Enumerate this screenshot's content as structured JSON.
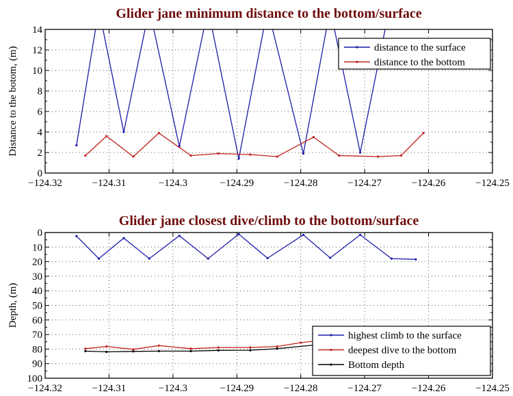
{
  "chart_data": [
    {
      "type": "line",
      "title": "Glider jane minimum distance to the bottom/surface",
      "xlabel": "",
      "ylabel": "Distance to the botom, (m)",
      "xlim": [
        -124.32,
        -124.25
      ],
      "ylim": [
        0,
        14
      ],
      "xticks": [
        -124.32,
        -124.31,
        -124.3,
        -124.29,
        -124.28,
        -124.27,
        -124.26,
        -124.25
      ],
      "xtick_labels": [
        "−124.32",
        "−124.31",
        "−124.3",
        "−124.29",
        "−124.28",
        "−124.27",
        "−124.26",
        "−124.25"
      ],
      "yticks": [
        0,
        2,
        4,
        6,
        8,
        10,
        12,
        14
      ],
      "ytick_labels": [
        "0",
        "2",
        "4",
        "6",
        "8",
        "10",
        "12",
        "14"
      ],
      "grid": true,
      "legend_position": "top-right",
      "series": [
        {
          "name": "distance to the surface",
          "color": "#1a1aa8",
          "x": [
            -124.3151,
            -124.3116,
            -124.3077,
            -124.3037,
            -124.299,
            -124.2945,
            -124.2897,
            -124.2852,
            -124.2796,
            -124.2754,
            -124.2707,
            -124.2655
          ],
          "y": [
            2.7,
            16,
            4.0,
            16,
            2.6,
            16,
            1.4,
            16,
            1.9,
            16,
            2.0,
            18
          ]
        },
        {
          "name": "distance to the bottom",
          "color": "#c0201a",
          "x": [
            -124.3137,
            -124.3104,
            -124.3062,
            -124.3022,
            -124.2972,
            -124.2929,
            -124.2879,
            -124.2837,
            -124.278,
            -124.274,
            -124.2679,
            -124.2643,
            -124.2608
          ],
          "y": [
            1.7,
            3.6,
            1.6,
            3.9,
            1.7,
            1.9,
            1.8,
            1.6,
            3.5,
            1.7,
            1.6,
            1.7,
            3.9
          ]
        }
      ]
    },
    {
      "type": "line",
      "title": "Glider jane closest dive/climb to the bottom/surface",
      "xlabel": "",
      "ylabel": "Depth, (m)",
      "xlim": [
        -124.32,
        -124.25
      ],
      "ylim": [
        100,
        0
      ],
      "xticks": [
        -124.32,
        -124.31,
        -124.3,
        -124.29,
        -124.28,
        -124.27,
        -124.26,
        -124.25
      ],
      "xtick_labels": [
        "−124.32",
        "−124.31",
        "−124.3",
        "−124.29",
        "−124.28",
        "−124.27",
        "−124.26",
        "−124.25"
      ],
      "yticks": [
        0,
        10,
        20,
        30,
        40,
        50,
        60,
        70,
        80,
        90,
        100
      ],
      "ytick_labels": [
        "0",
        "10",
        "20",
        "30",
        "40",
        "50",
        "60",
        "70",
        "80",
        "90",
        "100"
      ],
      "grid": true,
      "legend_position": "bottom-right",
      "series": [
        {
          "name": "highest climb to the surface",
          "color": "#1a1aa8",
          "x": [
            -124.3151,
            -124.3116,
            -124.3077,
            -124.3037,
            -124.299,
            -124.2945,
            -124.2897,
            -124.2852,
            -124.2796,
            -124.2754,
            -124.2707,
            -124.2658,
            -124.262
          ],
          "y": [
            2.4,
            17.9,
            3.8,
            17.9,
            2.2,
            17.9,
            1.1,
            17.6,
            1.6,
            17.4,
            1.6,
            17.9,
            18.4
          ]
        },
        {
          "name": "deepest dive to the bottom",
          "color": "#c0201a",
          "x": [
            -124.3137,
            -124.3104,
            -124.3062,
            -124.3022,
            -124.2972,
            -124.2929,
            -124.2879,
            -124.2837,
            -124.28,
            -124.278,
            -124.274
          ],
          "y": [
            79.7,
            78.2,
            80.2,
            77.6,
            79.7,
            78.9,
            78.9,
            78.2,
            75.6,
            74.6,
            73.5
          ]
        },
        {
          "name": "Bottom depth",
          "color": "#000000",
          "x": [
            -124.3137,
            -124.3104,
            -124.3062,
            -124.3022,
            -124.2972,
            -124.2929,
            -124.2879,
            -124.2837,
            -124.278,
            -124.274
          ],
          "y": [
            81.4,
            81.9,
            81.6,
            81.4,
            81.4,
            80.9,
            80.8,
            79.7,
            77.3,
            76.5
          ]
        }
      ]
    }
  ]
}
